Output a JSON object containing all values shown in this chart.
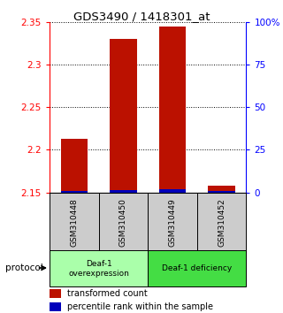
{
  "title": "GDS3490 / 1418301_at",
  "samples": [
    "GSM310448",
    "GSM310450",
    "GSM310449",
    "GSM310452"
  ],
  "red_values": [
    2.213,
    2.33,
    2.345,
    2.158
  ],
  "blue_values": [
    2.152,
    2.153,
    2.154,
    2.152
  ],
  "baseline": 2.15,
  "ylim_left": [
    2.15,
    2.35
  ],
  "ylim_right": [
    0,
    100
  ],
  "yticks_left": [
    2.15,
    2.2,
    2.25,
    2.3,
    2.35
  ],
  "yticks_right": [
    0,
    25,
    50,
    75,
    100
  ],
  "ytick_labels_left": [
    "2.15",
    "2.2",
    "2.25",
    "2.3",
    "2.35"
  ],
  "ytick_labels_right": [
    "0",
    "25",
    "50",
    "75",
    "100%"
  ],
  "bar_width": 0.55,
  "red_color": "#bb1100",
  "blue_color": "#0000bb",
  "bg_sample_box": "#cccccc",
  "bg_group1": "#aaffaa",
  "bg_group2": "#44dd44",
  "group_labels": [
    "Deaf-1\noverexpression",
    "Deaf-1 deficiency"
  ],
  "protocol_label": "protocol",
  "legend_red": "transformed count",
  "legend_blue": "percentile rank within the sample"
}
